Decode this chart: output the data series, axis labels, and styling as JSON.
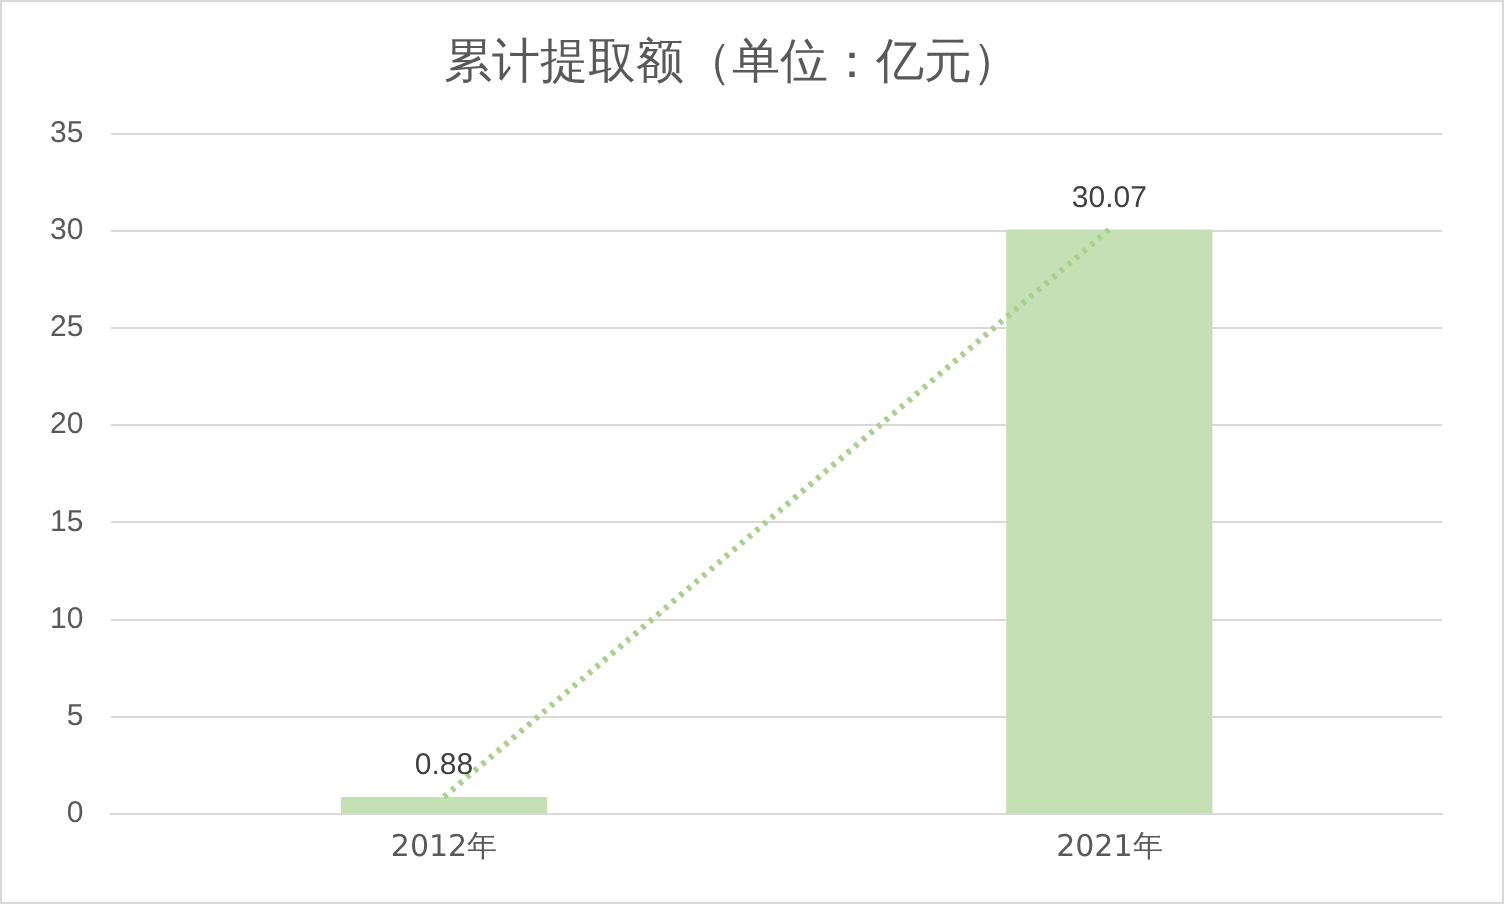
{
  "chart_data": {
    "type": "bar",
    "title": "累计提取额（单位：亿元）",
    "categories": [
      "2012年",
      "2021年"
    ],
    "series": [
      {
        "color": "#c5e0b4",
        "values": [
          0.88,
          30.07
        ],
        "value_labels": [
          "0.88",
          "30.07"
        ]
      },
      {
        "type": "line",
        "color": "#a9d18e",
        "values": [
          0.88,
          30.07
        ],
        "line_style": "dotted",
        "marker": "none"
      }
    ],
    "ylim": [
      0,
      35
    ],
    "yticks": [
      0,
      5,
      10,
      15,
      20,
      25,
      30,
      35
    ],
    "grid": "y",
    "legend": false
  }
}
